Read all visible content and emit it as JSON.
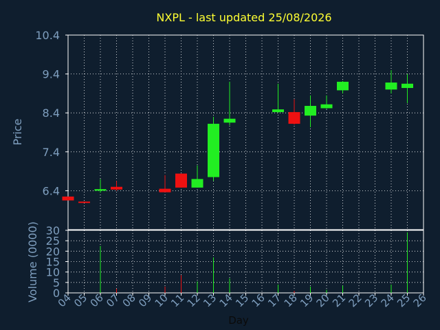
{
  "colors": {
    "background": "#0f1e2e",
    "plot_background": "#0f1e2e",
    "title": "#ffff33",
    "axis_text": "#7f9fbf",
    "tick_text": "#7f9fbf",
    "grid": "#ffffff",
    "axis": "#ffffff",
    "up": "#22ee22",
    "down": "#ee1111",
    "xlabel": "#0a0a0a"
  },
  "chart_data": [
    {
      "type": "candlestick",
      "title": "NXPL - last updated 25/08/2026",
      "ylabel": "Price",
      "ylim": [
        5.4,
        10.4
      ],
      "yticks": [
        6.4,
        7.4,
        8.4,
        9.4,
        10.4
      ],
      "ytick_labels": [
        "6.4",
        "7.4",
        "8.4",
        "9.4",
        "10.4"
      ],
      "xlim": [
        4,
        26
      ],
      "grid": true,
      "candles": [
        {
          "day": 4,
          "open": 6.25,
          "close": 6.15,
          "high": 6.25,
          "low": 6.15
        },
        {
          "day": 5,
          "open": 6.12,
          "close": 6.09,
          "high": 6.12,
          "low": 6.09
        },
        {
          "day": 6,
          "open": 6.4,
          "close": 6.44,
          "high": 6.7,
          "low": 6.35
        },
        {
          "day": 7,
          "open": 6.5,
          "close": 6.43,
          "high": 6.65,
          "low": 6.4
        },
        {
          "day": 10,
          "open": 6.45,
          "close": 6.36,
          "high": 6.8,
          "low": 6.36
        },
        {
          "day": 11,
          "open": 6.84,
          "close": 6.48,
          "high": 6.84,
          "low": 6.48
        },
        {
          "day": 12,
          "open": 6.48,
          "close": 6.7,
          "high": 7.05,
          "low": 6.48
        },
        {
          "day": 13,
          "open": 6.75,
          "close": 8.12,
          "high": 8.3,
          "low": 6.65
        },
        {
          "day": 14,
          "open": 8.15,
          "close": 8.25,
          "high": 9.2,
          "low": 8.08
        },
        {
          "day": 17,
          "open": 8.42,
          "close": 8.49,
          "high": 9.15,
          "low": 8.4
        },
        {
          "day": 18,
          "open": 8.42,
          "close": 8.12,
          "high": 8.75,
          "low": 8.1
        },
        {
          "day": 19,
          "open": 8.33,
          "close": 8.58,
          "high": 8.85,
          "low": 8.03
        },
        {
          "day": 20,
          "open": 8.52,
          "close": 8.62,
          "high": 8.85,
          "low": 8.5
        },
        {
          "day": 21,
          "open": 8.98,
          "close": 9.2,
          "high": 9.22,
          "low": 8.9
        },
        {
          "day": 24,
          "open": 9.0,
          "close": 9.18,
          "high": 9.5,
          "low": 8.9
        },
        {
          "day": 25,
          "open": 9.04,
          "close": 9.15,
          "high": 9.4,
          "low": 8.65
        }
      ]
    },
    {
      "type": "bar",
      "ylabel": "Volume (0000)",
      "xlabel": "Day",
      "ylim": [
        0,
        30
      ],
      "yticks": [
        0,
        5,
        10,
        15,
        20,
        25,
        30
      ],
      "ytick_labels": [
        "0",
        "5",
        "10",
        "15",
        "20",
        "25",
        "30"
      ],
      "xticks": [
        4,
        5,
        6,
        7,
        8,
        9,
        10,
        11,
        12,
        13,
        14,
        15,
        16,
        17,
        18,
        19,
        20,
        21,
        22,
        23,
        24,
        25,
        26
      ],
      "xtick_labels": [
        "04",
        "05",
        "06",
        "07",
        "08",
        "09",
        "10",
        "11",
        "12",
        "13",
        "14",
        "15",
        "16",
        "17",
        "18",
        "19",
        "20",
        "21",
        "22",
        "23",
        "24",
        "25",
        "26"
      ],
      "grid": true,
      "volumes": [
        {
          "day": 6,
          "value": 22.5,
          "dir": "up"
        },
        {
          "day": 7,
          "value": 2.0,
          "dir": "down"
        },
        {
          "day": 10,
          "value": 3.0,
          "dir": "down"
        },
        {
          "day": 11,
          "value": 8.5,
          "dir": "down"
        },
        {
          "day": 12,
          "value": 5.5,
          "dir": "up"
        },
        {
          "day": 13,
          "value": 17.0,
          "dir": "up"
        },
        {
          "day": 14,
          "value": 7.0,
          "dir": "up"
        },
        {
          "day": 17,
          "value": 4.0,
          "dir": "up"
        },
        {
          "day": 18,
          "value": 1.0,
          "dir": "down"
        },
        {
          "day": 19,
          "value": 3.0,
          "dir": "up"
        },
        {
          "day": 20,
          "value": 1.5,
          "dir": "up"
        },
        {
          "day": 21,
          "value": 3.5,
          "dir": "up"
        },
        {
          "day": 24,
          "value": 4.0,
          "dir": "up"
        },
        {
          "day": 25,
          "value": 29.0,
          "dir": "up"
        }
      ]
    }
  ]
}
